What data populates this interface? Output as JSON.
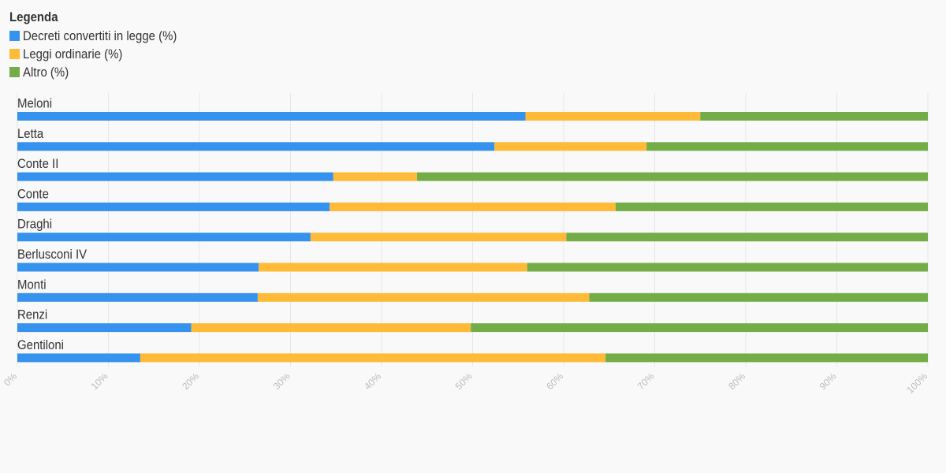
{
  "legend": {
    "title": "Legenda",
    "items": [
      {
        "label": "Decreti convertiti in legge (%)",
        "color": "#3592ef"
      },
      {
        "label": "Leggi ordinarie (%)",
        "color": "#ffba38"
      },
      {
        "label": "Altro (%)",
        "color": "#74ad47"
      }
    ]
  },
  "chart_data": {
    "type": "bar",
    "orientation": "horizontal",
    "stacked": true,
    "categories": [
      "Meloni",
      "Letta",
      "Conte II",
      "Conte",
      "Draghi",
      "Berlusconi IV",
      "Monti",
      "Renzi",
      "Gentiloni"
    ],
    "series": [
      {
        "name": "Decreti convertiti in legge (%)",
        "color": "#3592ef",
        "values": [
          55.8,
          52.4,
          34.7,
          34.3,
          32.2,
          26.5,
          26.4,
          19.1,
          13.5
        ]
      },
      {
        "name": "Leggi ordinarie (%)",
        "color": "#ffba38",
        "values": [
          19.2,
          16.7,
          9.2,
          31.4,
          28.1,
          29.5,
          36.4,
          30.7,
          51.1
        ]
      },
      {
        "name": "Altro (%)",
        "color": "#74ad47",
        "values": [
          25.0,
          30.9,
          56.1,
          34.3,
          39.7,
          44.0,
          37.2,
          50.2,
          35.4
        ]
      }
    ],
    "xlim": [
      0,
      100
    ],
    "x_ticks": [
      "0%",
      "10%",
      "20%",
      "30%",
      "40%",
      "50%",
      "60%",
      "70%",
      "80%",
      "90%",
      "100%"
    ],
    "grid": true,
    "legend_position": "top-left"
  }
}
